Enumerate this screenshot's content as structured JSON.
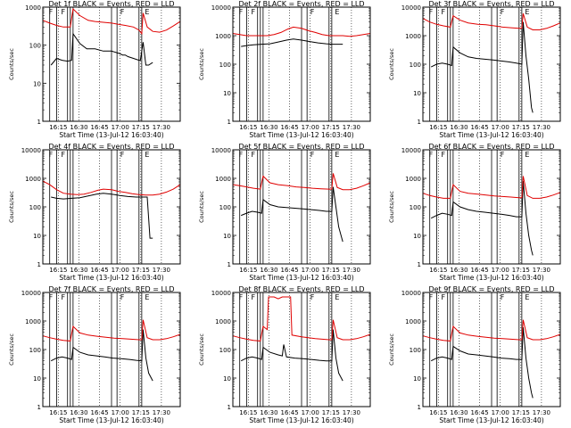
{
  "figure": {
    "x_label": "Start Time (13-Jul-12 16:03:40)",
    "y_label": "Counts/sec",
    "x_ticks": [
      "16:15",
      "16:30",
      "16:45",
      "17:00",
      "17:15",
      "17:30"
    ],
    "colors": {
      "events": "#000000",
      "lld": "#e00000",
      "axes": "#000000"
    }
  },
  "chart_data": [
    {
      "type": "line",
      "title": "Det 1f BLACK = Events, RED = LLD",
      "x_unit": "minutes after 16:03:40",
      "xlim": [
        0,
        100
      ],
      "y_scale": "log",
      "ylim": [
        1,
        1000
      ],
      "y_ticks": [
        "1",
        "10",
        "100",
        "1000"
      ],
      "markers": [
        "F",
        "F",
        "F",
        "E"
      ],
      "series": [
        {
          "name": "Events",
          "x": [
            6,
            10,
            14,
            18,
            21,
            22,
            27,
            32,
            38,
            44,
            50,
            56,
            58,
            60,
            62,
            66,
            70,
            71,
            73,
            75,
            77,
            80
          ],
          "y": [
            30,
            45,
            40,
            38,
            40,
            200,
            110,
            80,
            80,
            70,
            70,
            60,
            55,
            55,
            50,
            45,
            40,
            40,
            120,
            30,
            30,
            35
          ]
        },
        {
          "name": "LLD",
          "x": [
            0,
            5,
            10,
            15,
            20,
            22,
            27,
            33,
            38,
            44,
            50,
            56,
            60,
            66,
            70,
            72,
            73,
            76,
            80,
            85,
            90,
            95,
            100
          ],
          "y": [
            450,
            380,
            330,
            300,
            300,
            900,
            600,
            450,
            420,
            400,
            380,
            350,
            330,
            300,
            250,
            200,
            700,
            300,
            230,
            220,
            250,
            320,
            420
          ]
        }
      ]
    },
    {
      "type": "line",
      "title": "Det 2f BLACK = Events, RED = LLD",
      "x_unit": "minutes after 16:03:40",
      "xlim": [
        0,
        100
      ],
      "y_scale": "log",
      "ylim": [
        1,
        10000
      ],
      "y_ticks": [
        "1",
        "10",
        "100",
        "1000",
        "10000"
      ],
      "markers": [
        "F",
        "F",
        "F",
        "E"
      ],
      "series": [
        {
          "name": "Events",
          "x": [
            6,
            10,
            15,
            21,
            27,
            33,
            39,
            44,
            50,
            56,
            62,
            68,
            72,
            76,
            80
          ],
          "y": [
            420,
            450,
            480,
            500,
            520,
            600,
            700,
            760,
            700,
            620,
            560,
            520,
            500,
            500,
            500
          ]
        },
        {
          "name": "LLD",
          "x": [
            0,
            5,
            10,
            15,
            20,
            25,
            30,
            35,
            40,
            44,
            50,
            55,
            60,
            65,
            70,
            75,
            80,
            85,
            90,
            95,
            100
          ],
          "y": [
            1200,
            1100,
            1000,
            1000,
            1000,
            1000,
            1100,
            1300,
            1700,
            2000,
            1800,
            1500,
            1300,
            1100,
            1000,
            1000,
            1000,
            950,
            1000,
            1100,
            1200
          ]
        }
      ]
    },
    {
      "type": "line",
      "title": "Det 3f BLACK = Events, RED = LLD",
      "x_unit": "minutes after 16:03:40",
      "xlim": [
        0,
        100
      ],
      "y_scale": "log",
      "ylim": [
        1,
        10000
      ],
      "y_ticks": [
        "1",
        "10",
        "100",
        "1000",
        "10000"
      ],
      "markers": [
        "F",
        "F",
        "F",
        "E"
      ],
      "series": [
        {
          "name": "Events",
          "x": [
            6,
            10,
            14,
            18,
            21,
            22,
            27,
            33,
            39,
            45,
            51,
            57,
            63,
            68,
            72,
            73,
            75,
            77,
            79,
            80
          ],
          "y": [
            80,
            100,
            110,
            100,
            90,
            400,
            250,
            180,
            160,
            150,
            140,
            130,
            120,
            110,
            100,
            3000,
            200,
            30,
            3,
            2
          ]
        },
        {
          "name": "LLD",
          "x": [
            0,
            5,
            10,
            15,
            20,
            22,
            27,
            33,
            40,
            46,
            52,
            58,
            64,
            70,
            72,
            73,
            76,
            80,
            85,
            90,
            95,
            100
          ],
          "y": [
            4000,
            3000,
            2500,
            2200,
            2000,
            5000,
            3500,
            2800,
            2500,
            2400,
            2200,
            2000,
            1900,
            1800,
            1800,
            6000,
            2000,
            1600,
            1600,
            1800,
            2200,
            2800
          ]
        }
      ]
    },
    {
      "type": "line",
      "title": "Det 4f BLACK = Events, RED = LLD",
      "x_unit": "minutes after 16:03:40",
      "xlim": [
        0,
        100
      ],
      "y_scale": "log",
      "ylim": [
        1,
        10000
      ],
      "y_ticks": [
        "1",
        "10",
        "100",
        "1000",
        "10000"
      ],
      "markers": [
        "F",
        "F",
        "F",
        "E"
      ],
      "series": [
        {
          "name": "Events",
          "x": [
            6,
            10,
            15,
            21,
            27,
            33,
            39,
            44,
            50,
            56,
            62,
            68,
            72,
            76,
            78,
            80
          ],
          "y": [
            220,
            200,
            190,
            200,
            210,
            240,
            280,
            300,
            280,
            250,
            230,
            220,
            220,
            220,
            8,
            8
          ]
        },
        {
          "name": "LLD",
          "x": [
            0,
            5,
            10,
            15,
            20,
            25,
            30,
            35,
            40,
            44,
            50,
            55,
            60,
            65,
            70,
            75,
            80,
            85,
            90,
            95,
            100
          ],
          "y": [
            800,
            600,
            400,
            300,
            280,
            270,
            280,
            320,
            380,
            420,
            400,
            350,
            320,
            290,
            270,
            260,
            260,
            280,
            330,
            420,
            600
          ]
        }
      ]
    },
    {
      "type": "line",
      "title": "Det 5f BLACK = Events, RED = LLD",
      "x_unit": "minutes after 16:03:40",
      "xlim": [
        0,
        100
      ],
      "y_scale": "log",
      "ylim": [
        1,
        10000
      ],
      "y_ticks": [
        "1",
        "10",
        "100",
        "1000",
        "10000"
      ],
      "markers": [
        "F",
        "F",
        "F",
        "E"
      ],
      "series": [
        {
          "name": "Events",
          "x": [
            6,
            10,
            14,
            18,
            21,
            22,
            27,
            33,
            39,
            45,
            51,
            57,
            63,
            68,
            72,
            73,
            75,
            77,
            80
          ],
          "y": [
            50,
            60,
            70,
            65,
            60,
            180,
            120,
            100,
            95,
            90,
            85,
            80,
            75,
            70,
            70,
            500,
            100,
            20,
            6
          ]
        },
        {
          "name": "LLD",
          "x": [
            0,
            5,
            10,
            15,
            20,
            22,
            27,
            33,
            40,
            46,
            52,
            58,
            64,
            70,
            72,
            73,
            76,
            80,
            85,
            90,
            95,
            100
          ],
          "y": [
            600,
            550,
            500,
            450,
            420,
            1200,
            700,
            600,
            550,
            500,
            480,
            450,
            430,
            420,
            420,
            1500,
            480,
            400,
            400,
            450,
            550,
            700
          ]
        }
      ]
    },
    {
      "type": "line",
      "title": "Det 6f BLACK = Events, RED = LLD",
      "x_unit": "minutes after 16:03:40",
      "xlim": [
        0,
        100
      ],
      "y_scale": "log",
      "ylim": [
        1,
        10000
      ],
      "y_ticks": [
        "1",
        "10",
        "100",
        "1000",
        "10000"
      ],
      "markers": [
        "F",
        "F",
        "F",
        "E"
      ],
      "series": [
        {
          "name": "Events",
          "x": [
            6,
            10,
            14,
            18,
            21,
            22,
            27,
            33,
            39,
            45,
            51,
            57,
            63,
            68,
            72,
            73,
            75,
            77,
            79,
            80
          ],
          "y": [
            40,
            50,
            60,
            55,
            50,
            150,
            100,
            80,
            70,
            65,
            60,
            55,
            50,
            45,
            45,
            800,
            60,
            10,
            3,
            2
          ]
        },
        {
          "name": "LLD",
          "x": [
            0,
            5,
            10,
            15,
            20,
            22,
            27,
            33,
            40,
            46,
            52,
            58,
            64,
            70,
            72,
            73,
            76,
            80,
            85,
            90,
            95,
            100
          ],
          "y": [
            300,
            250,
            220,
            200,
            200,
            600,
            350,
            300,
            280,
            260,
            240,
            230,
            220,
            210,
            210,
            1200,
            250,
            200,
            200,
            220,
            260,
            320
          ]
        }
      ]
    },
    {
      "type": "line",
      "title": "Det 7f BLACK = Events, RED = LLD",
      "x_unit": "minutes after 16:03:40",
      "xlim": [
        0,
        100
      ],
      "y_scale": "log",
      "ylim": [
        1,
        10000
      ],
      "y_ticks": [
        "1",
        "10",
        "100",
        "1000",
        "10000"
      ],
      "markers": [
        "F",
        "F",
        "F",
        "E"
      ],
      "series": [
        {
          "name": "Events",
          "x": [
            6,
            10,
            14,
            18,
            21,
            22,
            27,
            33,
            39,
            45,
            51,
            57,
            63,
            68,
            72,
            73,
            75,
            77,
            80
          ],
          "y": [
            40,
            50,
            55,
            50,
            45,
            120,
            80,
            65,
            60,
            55,
            50,
            48,
            45,
            42,
            40,
            500,
            50,
            15,
            8
          ]
        },
        {
          "name": "LLD",
          "x": [
            0,
            5,
            10,
            15,
            20,
            22,
            27,
            33,
            40,
            46,
            52,
            58,
            64,
            70,
            72,
            73,
            76,
            80,
            85,
            90,
            95,
            100
          ],
          "y": [
            300,
            260,
            230,
            210,
            200,
            650,
            380,
            320,
            290,
            270,
            250,
            240,
            230,
            220,
            220,
            1100,
            260,
            220,
            220,
            240,
            280,
            340
          ]
        }
      ]
    },
    {
      "type": "line",
      "title": "Det 8f BLACK = Events, RED = LLD",
      "x_unit": "minutes after 16:03:40",
      "xlim": [
        0,
        100
      ],
      "y_scale": "log",
      "ylim": [
        1,
        10000
      ],
      "y_ticks": [
        "1",
        "10",
        "100",
        "1000",
        "10000"
      ],
      "markers": [
        "F",
        "F",
        "F",
        "E"
      ],
      "series": [
        {
          "name": "Events",
          "x": [
            6,
            10,
            14,
            18,
            21,
            22,
            27,
            33,
            36,
            37,
            39,
            45,
            51,
            57,
            63,
            68,
            72,
            73,
            75,
            77,
            80
          ],
          "y": [
            40,
            50,
            55,
            50,
            45,
            120,
            80,
            65,
            60,
            150,
            55,
            50,
            48,
            45,
            42,
            40,
            40,
            500,
            50,
            15,
            8
          ]
        },
        {
          "name": "LLD",
          "x": [
            0,
            5,
            10,
            15,
            20,
            22,
            25,
            26,
            28,
            30,
            33,
            36,
            40,
            42,
            43,
            50,
            55,
            60,
            65,
            70,
            72,
            73,
            76,
            80,
            85,
            90,
            95,
            100
          ],
          "y": [
            300,
            260,
            230,
            210,
            200,
            650,
            500,
            7000,
            7000,
            7000,
            6000,
            7000,
            7000,
            7000,
            320,
            280,
            260,
            240,
            230,
            220,
            220,
            1100,
            260,
            220,
            220,
            240,
            280,
            340
          ]
        }
      ]
    },
    {
      "type": "line",
      "title": "Det 9f BLACK = Events, RED = LLD",
      "x_unit": "minutes after 16:03:40",
      "xlim": [
        0,
        100
      ],
      "y_scale": "log",
      "ylim": [
        1,
        10000
      ],
      "y_ticks": [
        "1",
        "10",
        "100",
        "1000",
        "10000"
      ],
      "markers": [
        "F",
        "F",
        "F",
        "E"
      ],
      "series": [
        {
          "name": "Events",
          "x": [
            6,
            10,
            14,
            18,
            21,
            22,
            27,
            33,
            39,
            45,
            51,
            57,
            63,
            68,
            72,
            73,
            75,
            77,
            79,
            80
          ],
          "y": [
            40,
            50,
            55,
            50,
            45,
            130,
            90,
            70,
            65,
            60,
            55,
            50,
            48,
            45,
            45,
            600,
            50,
            10,
            3,
            2
          ]
        },
        {
          "name": "LLD",
          "x": [
            0,
            5,
            10,
            15,
            20,
            22,
            27,
            33,
            40,
            46,
            52,
            58,
            64,
            70,
            72,
            73,
            76,
            80,
            85,
            90,
            95,
            100
          ],
          "y": [
            300,
            260,
            230,
            210,
            200,
            650,
            380,
            320,
            290,
            270,
            250,
            240,
            230,
            220,
            220,
            1100,
            260,
            220,
            220,
            240,
            280,
            340
          ]
        }
      ]
    }
  ]
}
